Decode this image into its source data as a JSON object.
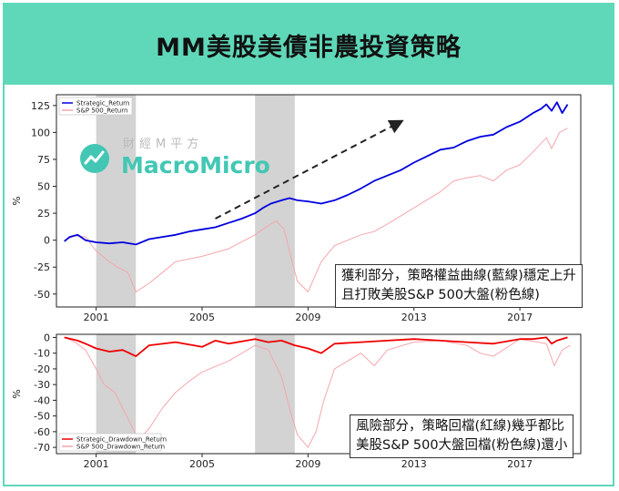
{
  "header": {
    "title": "MM美股美債非農投資策略"
  },
  "logo": {
    "cn": "財經M平方",
    "en": "MacroMicro",
    "color": "#43c7b4"
  },
  "colors": {
    "strategy": "#0000dd",
    "sp500": "#f4a6ad",
    "drawdown": "#ee0000",
    "recession": "#d3d3d3",
    "accent": "#5fd8b9"
  },
  "callouts": {
    "top": [
      "獲利部分，策略權益曲線(藍線)穩定上升",
      "且打敗美股S&P 500大盤(粉色線)"
    ],
    "bottom": [
      "風險部分，策略回檔(紅線)幾乎都比",
      "美股S&P 500大盤回檔(粉色線)還小"
    ]
  },
  "chart_data": [
    {
      "type": "line",
      "ylabel": "%",
      "xlim": [
        1999.5,
        2019.3
      ],
      "ylim": [
        -62,
        135
      ],
      "xticks": [
        2001,
        2005,
        2009,
        2013,
        2017
      ],
      "yticks": [
        -50,
        -25,
        0,
        25,
        50,
        75,
        100,
        125
      ],
      "legend": {
        "placement": "top-left",
        "entries": [
          "Strategic_Return",
          "S&P 500_Return"
        ]
      },
      "recession_bands": [
        [
          2001.0,
          2002.5
        ],
        [
          2007.0,
          2008.5
        ]
      ],
      "annotations": [
        {
          "type": "dashed-arrow",
          "from": [
            2005.5,
            20
          ],
          "to": [
            2012.5,
            110
          ]
        }
      ],
      "series": [
        {
          "name": "Strategic_Return",
          "x": [
            1999.8,
            2000.0,
            2000.3,
            2000.6,
            2001.0,
            2001.5,
            2002.0,
            2002.5,
            2003.0,
            2003.5,
            2004.0,
            2004.5,
            2005.0,
            2005.5,
            2006.0,
            2006.5,
            2007.0,
            2007.3,
            2007.6,
            2008.0,
            2008.3,
            2008.6,
            2009.0,
            2009.5,
            2010.0,
            2010.5,
            2011.0,
            2011.5,
            2012.0,
            2012.5,
            2013.0,
            2013.5,
            2014.0,
            2014.5,
            2015.0,
            2015.5,
            2016.0,
            2016.5,
            2017.0,
            2017.5,
            2017.8,
            2018.0,
            2018.2,
            2018.4,
            2018.6,
            2018.8
          ],
          "values": [
            -1,
            3,
            5,
            0,
            -2,
            -3,
            -2,
            -4,
            1,
            3,
            5,
            8,
            10,
            12,
            16,
            20,
            25,
            30,
            34,
            37,
            39,
            37,
            36,
            34,
            37,
            42,
            48,
            55,
            60,
            65,
            72,
            78,
            84,
            86,
            92,
            96,
            98,
            105,
            110,
            118,
            122,
            126,
            120,
            128,
            118,
            126
          ]
        },
        {
          "name": "S&P 500_Return",
          "x": [
            1999.8,
            2000.2,
            2000.6,
            2001.0,
            2001.5,
            2001.8,
            2002.2,
            2002.5,
            2003.0,
            2003.5,
            2004.0,
            2005.0,
            2006.0,
            2007.0,
            2007.4,
            2007.8,
            2008.1,
            2008.4,
            2008.6,
            2009.0,
            2009.5,
            2010.0,
            2010.5,
            2011.0,
            2011.5,
            2012.0,
            2013.0,
            2014.0,
            2014.5,
            2015.0,
            2015.5,
            2016.0,
            2016.5,
            2017.0,
            2017.5,
            2018.0,
            2018.2,
            2018.5,
            2018.8
          ],
          "values": [
            0,
            4,
            3,
            -10,
            -20,
            -25,
            -30,
            -48,
            -40,
            -30,
            -20,
            -15,
            -8,
            5,
            12,
            18,
            10,
            -20,
            -38,
            -48,
            -20,
            -5,
            0,
            5,
            8,
            15,
            30,
            45,
            55,
            58,
            60,
            55,
            65,
            70,
            82,
            95,
            85,
            100,
            104
          ]
        }
      ]
    },
    {
      "type": "line",
      "ylabel": "%",
      "xlim": [
        1999.5,
        2019.3
      ],
      "ylim": [
        -74,
        2
      ],
      "xticks": [
        2001,
        2005,
        2009,
        2013,
        2017
      ],
      "yticks": [
        0,
        -10,
        -20,
        -30,
        -40,
        -50,
        -60,
        -70
      ],
      "legend": {
        "placement": "bottom-left",
        "entries": [
          "Strategic_Drawdown_Return",
          "S&P 500_Drawdown_Return"
        ]
      },
      "recession_bands": [
        [
          2001.0,
          2002.5
        ],
        [
          2007.0,
          2008.5
        ]
      ],
      "series": [
        {
          "name": "Strategic_Drawdown_Return",
          "x": [
            1999.8,
            2000.3,
            2000.6,
            2001.0,
            2001.5,
            2002.0,
            2002.5,
            2003.0,
            2004.0,
            2005.0,
            2005.5,
            2006.0,
            2007.0,
            2007.5,
            2008.0,
            2008.5,
            2009.0,
            2009.5,
            2010.0,
            2011.0,
            2012.0,
            2013.0,
            2014.0,
            2015.0,
            2016.0,
            2017.0,
            2017.5,
            2018.0,
            2018.2,
            2018.4,
            2018.8
          ],
          "values": [
            0,
            -2,
            -4,
            -7,
            -9,
            -8,
            -12,
            -5,
            -3,
            -6,
            -2,
            -4,
            -1,
            -3,
            -2,
            -5,
            -7,
            -10,
            -4,
            -3,
            -2,
            -1,
            -2,
            -3,
            -4,
            -1,
            -1,
            0,
            -4,
            -2,
            0
          ]
        },
        {
          "name": "S&P 500_Drawdown_Return",
          "x": [
            1999.8,
            2000.2,
            2000.6,
            2001.0,
            2001.3,
            2001.7,
            2002.0,
            2002.3,
            2002.6,
            2003.0,
            2003.5,
            2004.0,
            2004.5,
            2005.0,
            2006.0,
            2007.0,
            2007.5,
            2008.0,
            2008.3,
            2008.6,
            2009.0,
            2009.3,
            2009.6,
            2010.0,
            2011.0,
            2011.5,
            2012.0,
            2013.0,
            2014.0,
            2015.0,
            2015.5,
            2016.0,
            2017.0,
            2018.0,
            2018.3,
            2018.6,
            2018.9
          ],
          "values": [
            0,
            -3,
            -8,
            -20,
            -30,
            -35,
            -45,
            -55,
            -65,
            -58,
            -45,
            -35,
            -28,
            -22,
            -15,
            -5,
            -8,
            -25,
            -45,
            -62,
            -70,
            -60,
            -40,
            -20,
            -10,
            -18,
            -8,
            -3,
            -2,
            -5,
            -10,
            -12,
            -1,
            -4,
            -18,
            -8,
            -5
          ]
        }
      ]
    }
  ]
}
